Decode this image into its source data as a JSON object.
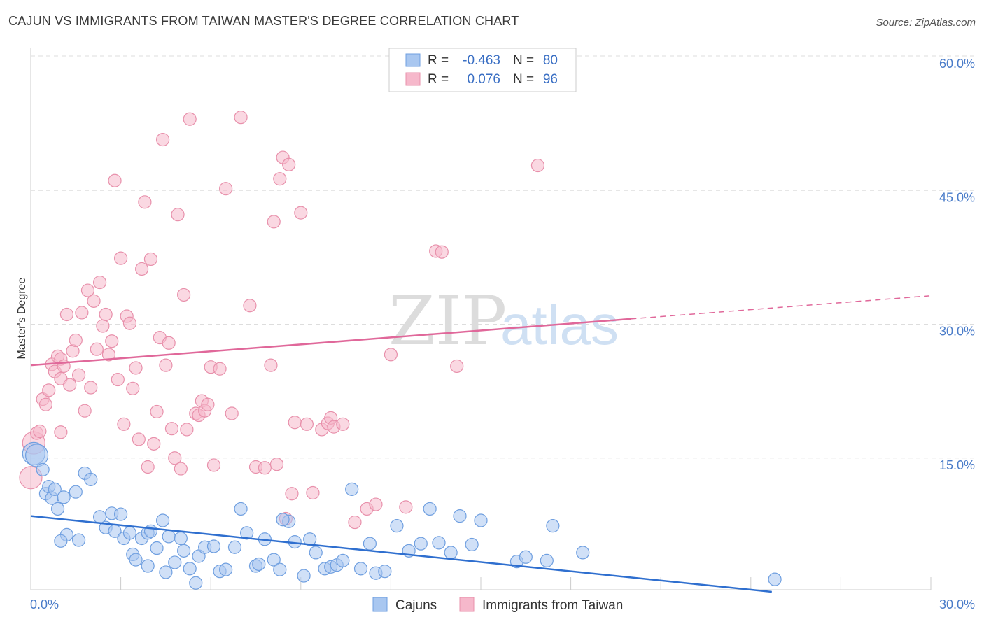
{
  "title": "CAJUN VS IMMIGRANTS FROM TAIWAN MASTER'S DEGREE CORRELATION CHART",
  "source": "Source: ZipAtlas.com",
  "watermark": {
    "zip": "ZIP",
    "atlas": "atlas"
  },
  "colors": {
    "blue_fill": "#a9c7f0",
    "blue_stroke": "#6f9fe0",
    "blue_line": "#2f6fcf",
    "pink_fill": "#f6b8cb",
    "pink_stroke": "#e890ab",
    "pink_line": "#e0689a",
    "grid": "#dddddd",
    "tick_text": "#4a7cc9"
  },
  "legend": {
    "rows": [
      {
        "r_label": "R =",
        "r_value": "-0.463",
        "n_label": "N =",
        "n_value": "80",
        "series": "blue"
      },
      {
        "r_label": "R =",
        "r_value": "0.076",
        "n_label": "N =",
        "n_value": "96",
        "series": "pink"
      }
    ]
  },
  "bottom_legend": {
    "cajuns": "Cajuns",
    "taiwan": "Immigrants from Taiwan"
  },
  "chart_data": {
    "type": "scatter",
    "title": "CAJUN VS IMMIGRANTS FROM TAIWAN MASTER'S DEGREE CORRELATION CHART",
    "xlabel": "",
    "ylabel": "Master's Degree",
    "xlim": [
      0,
      30
    ],
    "ylim": [
      0,
      60
    ],
    "x_tick_labels": [
      "0.0%",
      "30.0%"
    ],
    "y_tick_labels": [
      "15.0%",
      "30.0%",
      "45.0%",
      "60.0%"
    ],
    "y_ticks": [
      15,
      30,
      45,
      60
    ],
    "series": [
      {
        "name": "Cajuns",
        "color": "blue",
        "points": [
          [
            0.1,
            15.5
          ],
          [
            0.2,
            15.3
          ],
          [
            0.4,
            13.7
          ],
          [
            0.5,
            11.0
          ],
          [
            0.6,
            11.8
          ],
          [
            0.7,
            10.5
          ],
          [
            0.8,
            11.5
          ],
          [
            0.9,
            9.3
          ],
          [
            1.1,
            10.6
          ],
          [
            1.2,
            6.4
          ],
          [
            1.5,
            11.2
          ],
          [
            1.6,
            5.8
          ],
          [
            1.8,
            13.3
          ],
          [
            2.0,
            12.6
          ],
          [
            2.3,
            8.4
          ],
          [
            2.5,
            7.2
          ],
          [
            2.7,
            8.8
          ],
          [
            2.8,
            6.8
          ],
          [
            3.0,
            8.7
          ],
          [
            3.1,
            6.0
          ],
          [
            3.3,
            6.6
          ],
          [
            3.4,
            4.2
          ],
          [
            3.5,
            3.6
          ],
          [
            3.7,
            6.0
          ],
          [
            3.9,
            6.6
          ],
          [
            4.0,
            6.8
          ],
          [
            4.2,
            4.9
          ],
          [
            4.4,
            8.0
          ],
          [
            4.5,
            2.2
          ],
          [
            4.6,
            6.2
          ],
          [
            4.8,
            3.3
          ],
          [
            5.0,
            6.0
          ],
          [
            5.1,
            4.6
          ],
          [
            5.3,
            2.6
          ],
          [
            5.5,
            1.0
          ],
          [
            5.6,
            4.0
          ],
          [
            5.8,
            5.0
          ],
          [
            6.1,
            5.1
          ],
          [
            6.3,
            2.3
          ],
          [
            6.5,
            2.5
          ],
          [
            6.8,
            5.0
          ],
          [
            7.0,
            9.3
          ],
          [
            7.2,
            6.6
          ],
          [
            7.5,
            2.9
          ],
          [
            7.6,
            3.1
          ],
          [
            7.8,
            5.9
          ],
          [
            8.1,
            3.6
          ],
          [
            8.3,
            2.5
          ],
          [
            8.6,
            7.9
          ],
          [
            8.8,
            5.6
          ],
          [
            9.1,
            1.8
          ],
          [
            9.3,
            5.9
          ],
          [
            9.5,
            4.4
          ],
          [
            9.8,
            2.6
          ],
          [
            10.0,
            2.8
          ],
          [
            10.2,
            3.0
          ],
          [
            10.4,
            3.5
          ],
          [
            10.7,
            11.5
          ],
          [
            11.0,
            2.6
          ],
          [
            11.3,
            5.4
          ],
          [
            11.5,
            2.1
          ],
          [
            11.8,
            2.3
          ],
          [
            12.2,
            7.4
          ],
          [
            12.6,
            4.6
          ],
          [
            13.0,
            5.4
          ],
          [
            13.3,
            9.3
          ],
          [
            13.6,
            5.5
          ],
          [
            14.0,
            4.4
          ],
          [
            14.3,
            8.5
          ],
          [
            14.7,
            5.3
          ],
          [
            15.0,
            8.0
          ],
          [
            16.2,
            3.4
          ],
          [
            16.5,
            3.9
          ],
          [
            17.2,
            3.5
          ],
          [
            17.4,
            7.4
          ],
          [
            18.4,
            4.4
          ],
          [
            24.8,
            1.4
          ],
          [
            3.9,
            2.9
          ],
          [
            8.4,
            8.1
          ],
          [
            1.0,
            5.7
          ]
        ],
        "trend": {
          "x0": 0,
          "y0": 8.5,
          "x1": 24.7,
          "y1": 0.0
        }
      },
      {
        "name": "Immigrants from Taiwan",
        "color": "pink",
        "points": [
          [
            0.0,
            12.8
          ],
          [
            0.1,
            16.7
          ],
          [
            0.2,
            17.8
          ],
          [
            0.3,
            18.0
          ],
          [
            0.4,
            21.6
          ],
          [
            0.5,
            21.0
          ],
          [
            0.6,
            22.6
          ],
          [
            0.7,
            25.5
          ],
          [
            0.8,
            24.7
          ],
          [
            0.9,
            26.4
          ],
          [
            1.0,
            23.9
          ],
          [
            1.0,
            26.1
          ],
          [
            1.1,
            25.3
          ],
          [
            1.2,
            31.1
          ],
          [
            1.3,
            23.2
          ],
          [
            1.4,
            27.0
          ],
          [
            1.5,
            28.2
          ],
          [
            1.6,
            24.3
          ],
          [
            1.7,
            31.3
          ],
          [
            1.8,
            20.3
          ],
          [
            1.9,
            33.8
          ],
          [
            2.0,
            22.9
          ],
          [
            2.1,
            32.6
          ],
          [
            2.2,
            27.2
          ],
          [
            2.3,
            34.7
          ],
          [
            2.4,
            29.8
          ],
          [
            2.5,
            31.1
          ],
          [
            2.6,
            26.6
          ],
          [
            2.7,
            28.1
          ],
          [
            2.8,
            46.1
          ],
          [
            2.9,
            23.8
          ],
          [
            3.0,
            37.4
          ],
          [
            3.1,
            18.8
          ],
          [
            3.2,
            30.9
          ],
          [
            3.3,
            30.1
          ],
          [
            3.4,
            22.8
          ],
          [
            3.5,
            25.1
          ],
          [
            3.6,
            17.1
          ],
          [
            3.7,
            36.2
          ],
          [
            3.8,
            43.7
          ],
          [
            3.9,
            14.0
          ],
          [
            4.0,
            37.3
          ],
          [
            4.1,
            16.6
          ],
          [
            4.2,
            20.2
          ],
          [
            4.3,
            28.5
          ],
          [
            4.4,
            50.7
          ],
          [
            4.5,
            25.4
          ],
          [
            4.6,
            27.9
          ],
          [
            4.7,
            18.3
          ],
          [
            4.8,
            15.0
          ],
          [
            4.9,
            42.3
          ],
          [
            5.0,
            13.8
          ],
          [
            5.1,
            33.3
          ],
          [
            5.2,
            18.2
          ],
          [
            5.3,
            53.0
          ],
          [
            5.5,
            20.0
          ],
          [
            5.6,
            19.8
          ],
          [
            5.7,
            21.4
          ],
          [
            5.8,
            20.3
          ],
          [
            5.9,
            21.0
          ],
          [
            6.0,
            25.2
          ],
          [
            6.1,
            14.2
          ],
          [
            6.3,
            25.0
          ],
          [
            6.5,
            45.2
          ],
          [
            6.7,
            20.0
          ],
          [
            7.0,
            53.2
          ],
          [
            7.3,
            32.1
          ],
          [
            7.5,
            14.0
          ],
          [
            7.8,
            13.9
          ],
          [
            8.0,
            25.4
          ],
          [
            8.1,
            41.5
          ],
          [
            8.2,
            14.3
          ],
          [
            8.3,
            46.3
          ],
          [
            8.4,
            48.7
          ],
          [
            8.5,
            8.2
          ],
          [
            8.6,
            47.9
          ],
          [
            8.7,
            11.0
          ],
          [
            8.8,
            19.0
          ],
          [
            9.0,
            42.5
          ],
          [
            9.2,
            18.8
          ],
          [
            9.4,
            11.1
          ],
          [
            9.7,
            18.2
          ],
          [
            9.9,
            18.9
          ],
          [
            10.0,
            19.5
          ],
          [
            10.1,
            18.5
          ],
          [
            10.4,
            18.8
          ],
          [
            10.8,
            7.8
          ],
          [
            11.2,
            9.3
          ],
          [
            11.5,
            9.8
          ],
          [
            12.0,
            26.6
          ],
          [
            12.5,
            9.5
          ],
          [
            13.5,
            38.2
          ],
          [
            13.7,
            38.1
          ],
          [
            14.2,
            25.3
          ],
          [
            16.9,
            47.8
          ],
          [
            1.0,
            17.9
          ]
        ],
        "trend": {
          "x0": 0,
          "y0": 25.4,
          "x1": 20.0,
          "y1": 30.6
        },
        "trend_dashed": {
          "x0": 20.0,
          "y0": 30.6,
          "x1": 30.0,
          "y1": 33.2
        }
      }
    ],
    "grid": true
  }
}
